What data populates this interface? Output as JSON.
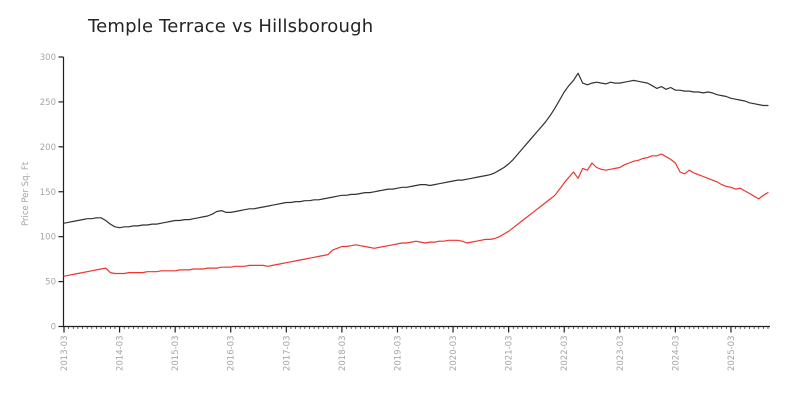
{
  "title": "Temple Terrace vs Hillsborough",
  "colors": {
    "axis": "#1f1f1f",
    "tick_label": "#a6a6a6",
    "title_text": "#242424",
    "series_black": "#333333",
    "series_red": "#ee352f"
  },
  "chart_data": {
    "type": "line",
    "title": "Temple Terrace vs Hillsborough",
    "xlabel": "",
    "ylabel": "Price Per Sq. Ft",
    "ylim": [
      0,
      300
    ],
    "y_ticks": [
      0,
      50,
      100,
      150,
      200,
      250,
      300
    ],
    "x_start": "2013-03",
    "x_end": "2025-11",
    "x_frequency": "monthly",
    "x_tick_labels": [
      "2013-03",
      "2014-03",
      "2015-03",
      "2016-03",
      "2017-03",
      "2018-03",
      "2019-03",
      "2020-03",
      "2021-03",
      "2022-03",
      "2023-03",
      "2024-03",
      "2025-03"
    ],
    "grid": false,
    "legend": "none",
    "series": [
      {
        "name": "Hillsborough",
        "color": "#333333",
        "values": [
          115,
          116,
          117,
          118,
          119,
          120,
          120,
          121,
          121,
          118,
          114,
          111,
          110,
          111,
          111,
          112,
          112,
          113,
          113,
          114,
          114,
          115,
          116,
          117,
          118,
          118,
          119,
          119,
          120,
          121,
          122,
          123,
          125,
          128,
          129,
          127,
          127,
          128,
          129,
          130,
          131,
          131,
          132,
          133,
          134,
          135,
          136,
          137,
          138,
          138,
          139,
          139,
          140,
          140,
          141,
          141,
          142,
          143,
          144,
          145,
          146,
          146,
          147,
          147,
          148,
          149,
          149,
          150,
          151,
          152,
          153,
          153,
          154,
          155,
          155,
          156,
          157,
          158,
          158,
          157,
          158,
          159,
          160,
          161,
          162,
          163,
          163,
          164,
          165,
          166,
          167,
          168,
          169,
          171,
          174,
          177,
          181,
          186,
          192,
          198,
          204,
          210,
          216,
          222,
          228,
          235,
          243,
          252,
          261,
          268,
          274,
          282,
          271,
          269,
          271,
          272,
          271,
          270,
          272,
          271,
          271,
          272,
          273,
          274,
          273,
          272,
          271,
          268,
          265,
          267,
          264,
          266,
          263,
          263,
          262,
          262,
          261,
          261,
          260,
          261,
          260,
          258,
          257,
          256,
          254,
          253,
          252,
          251,
          249,
          248,
          247,
          246,
          246
        ]
      },
      {
        "name": "Temple Terrace",
        "color": "#ee352f",
        "values": [
          56,
          57,
          58,
          59,
          60,
          61,
          62,
          63,
          64,
          65,
          60,
          59,
          59,
          59,
          60,
          60,
          60,
          60,
          61,
          61,
          61,
          62,
          62,
          62,
          62,
          63,
          63,
          63,
          64,
          64,
          64,
          65,
          65,
          65,
          66,
          66,
          66,
          67,
          67,
          67,
          68,
          68,
          68,
          68,
          67,
          68,
          69,
          70,
          71,
          72,
          73,
          74,
          75,
          76,
          77,
          78,
          79,
          80,
          85,
          87,
          89,
          89,
          90,
          91,
          90,
          89,
          88,
          87,
          88,
          89,
          90,
          91,
          92,
          93,
          93,
          94,
          95,
          94,
          93,
          94,
          94,
          95,
          95,
          96,
          96,
          96,
          95,
          93,
          94,
          95,
          96,
          97,
          97,
          98,
          100,
          103,
          106,
          110,
          114,
          118,
          122,
          126,
          130,
          134,
          138,
          142,
          146,
          153,
          160,
          166,
          172,
          165,
          176,
          174,
          182,
          177,
          175,
          174,
          175,
          176,
          177,
          180,
          182,
          184,
          185,
          187,
          188,
          190,
          190,
          192,
          189,
          186,
          182,
          172,
          170,
          174,
          171,
          169,
          167,
          165,
          163,
          161,
          158,
          156,
          155,
          153,
          154,
          151,
          148,
          145,
          142,
          146,
          149
        ]
      }
    ]
  }
}
